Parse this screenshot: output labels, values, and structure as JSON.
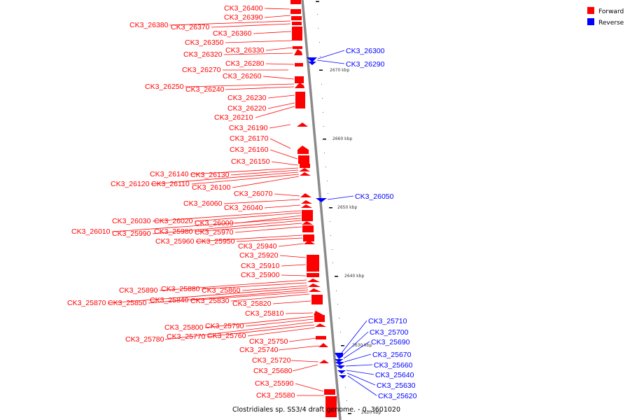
{
  "caption": "Clostridiales sp. SS3/4 draft genome. - 0..3601020",
  "legend": [
    {
      "label": "Forward",
      "color": "#ff0000"
    },
    {
      "label": "Reverse",
      "color": "#0000ff"
    }
  ],
  "colors": {
    "forward": "#ff0000",
    "reverse": "#0000ff",
    "backbone": "#888888",
    "tick": "#000000"
  },
  "ticks": [
    "2670 kbp",
    "2660 kbp",
    "2650 kbp",
    "2640 kbp",
    "2630 kbp",
    "2620 kbp"
  ],
  "forward_labels": [
    "CK3_26400",
    "CK3_26390",
    "CK3_26380",
    "CK3_26370",
    "CK3_26360",
    "CK3_26350",
    "CK3_26330",
    "CK3_26320",
    "CK3_26280",
    "CK3_26270",
    "CK3_26260",
    "CK3_26250",
    "CK3_26240",
    "CK3_26230",
    "CK3_26220",
    "CK3_26210",
    "CK3_26190",
    "CK3_26170",
    "CK3_26160",
    "CK3_26150",
    "CK3_26140",
    "CK3_26130",
    "CK3_26120",
    "CK3_26110",
    "CK3_26100",
    "CK3_26070",
    "CK3_26060",
    "CK3_26040",
    "CK3_26030",
    "CK3_26020",
    "CK3_26000",
    "CK3_26010",
    "CK3_25990",
    "CK3_25980",
    "CK3_25970",
    "CK3_25960",
    "CK3_25950",
    "CK3_25940",
    "CK3_25920",
    "CK3_25910",
    "CK3_25900",
    "CK3_25890",
    "CK3_25880",
    "CK3_25860",
    "CK3_25870",
    "CK3_25850",
    "CK3_25840",
    "CK3_25830",
    "CK3_25820",
    "CK3_25810",
    "CK3_25800",
    "CK3_25790",
    "CK3_25780",
    "CK3_25770",
    "CK3_25760",
    "CK3_25750",
    "CK3_25740",
    "CK3_25720",
    "CK3_25680",
    "CK3_25590",
    "CK3_25580"
  ],
  "reverse_labels": [
    "CK3_26300",
    "CK3_26290",
    "CK3_26050",
    "CK3_25710",
    "CK3_25700",
    "CK3_25690",
    "CK3_25670",
    "CK3_25660",
    "CK3_25640",
    "CK3_25630",
    "CK3_25620"
  ]
}
